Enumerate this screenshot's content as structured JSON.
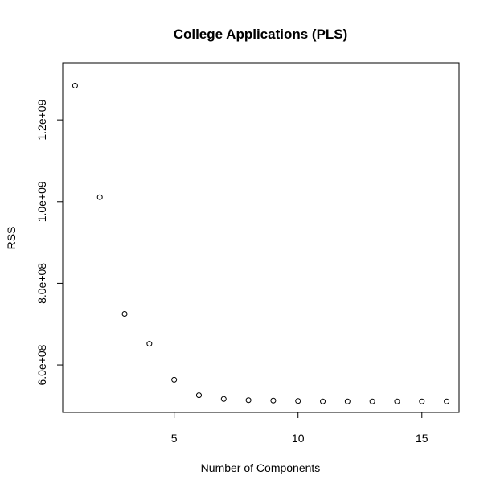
{
  "chart_data": {
    "type": "scatter",
    "title": "College Applications (PLS)",
    "xlabel": "Number of Components",
    "ylabel": "RSS",
    "x": [
      1,
      2,
      3,
      4,
      5,
      6,
      7,
      8,
      9,
      10,
      11,
      12,
      13,
      14,
      15,
      16
    ],
    "y": [
      1284000000,
      1011000000,
      725000000,
      652000000,
      564000000,
      526000000,
      517000000,
      514000000,
      513000000,
      512000000,
      511000000,
      511000000,
      511000000,
      511000000,
      511000000,
      511000000
    ],
    "xlim": [
      0.5,
      16.5
    ],
    "ylim": [
      484000000,
      1340000000
    ],
    "x_ticks": [
      5,
      10,
      15
    ],
    "x_tick_labels": [
      "5",
      "10",
      "15"
    ],
    "y_ticks": [
      600000000,
      800000000,
      1000000000,
      1200000000
    ],
    "y_tick_labels": [
      "6.0e+08",
      "8.0e+08",
      "1.0e+09",
      "1.2e+09"
    ],
    "marker": "open-circle",
    "grid": false,
    "legend": "none"
  }
}
